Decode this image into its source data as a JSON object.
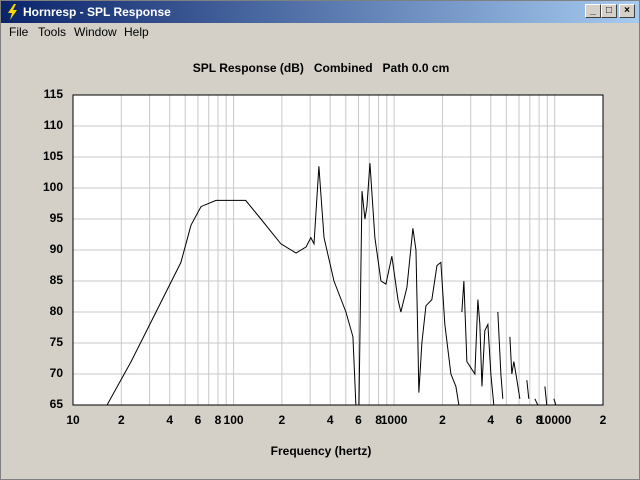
{
  "window": {
    "title": "Hornresp - SPL Response"
  },
  "menu": [
    "File",
    "Tools",
    "Window",
    "Help"
  ],
  "chart_data": {
    "type": "line",
    "title": "SPL Response (dB)   Combined   Path 0.0 cm",
    "x_label": "Frequency (hertz)",
    "log_x": true,
    "grid": true,
    "xlim": [
      10,
      20000
    ],
    "ylim": [
      65,
      115
    ],
    "yticks": [
      65,
      70,
      75,
      80,
      85,
      90,
      95,
      100,
      105,
      110,
      115
    ],
    "xticks": [
      10,
      {
        "value": 20,
        "label": "2"
      },
      {
        "value": 40,
        "label": "4"
      },
      {
        "value": 60,
        "label": "6"
      },
      {
        "value": 80,
        "label": "8"
      },
      100,
      {
        "value": 200,
        "label": "2"
      },
      {
        "value": 400,
        "label": "4"
      },
      {
        "value": 600,
        "label": "6"
      },
      {
        "value": 800,
        "label": "8"
      },
      1000,
      {
        "value": 2000,
        "label": "2"
      },
      {
        "value": 4000,
        "label": "4"
      },
      {
        "value": 6000,
        "label": "6"
      },
      {
        "value": 8000,
        "label": "8"
      },
      10000,
      {
        "value": 20000,
        "label": "2"
      }
    ],
    "x_minor_grid": [
      30,
      50,
      70,
      90,
      300,
      500,
      700,
      900,
      3000,
      5000,
      7000,
      9000
    ],
    "series": [
      {
        "color": "#000000",
        "x": [
          16.3,
          23,
          32.9,
          47,
          54.3,
          62.7,
          77.7,
          119,
          148,
          197,
          245,
          283,
          303,
          317,
          340,
          366,
          422,
          501,
          554,
          578,
          null,
          604,
          631,
          658,
          677,
          707,
          759,
          828,
          889,
          968,
          1057,
          1102,
          1202,
          1309,
          1368,
          1407,
          1426,
          1489,
          1578,
          1718,
          1849,
          1955,
          2070,
          2258,
          2425,
          2531,
          null,
          2642,
          2720,
          2840,
          3006,
          3184,
          3325,
          3420,
          3524,
          3673,
          3837,
          4005,
          4178,
          null,
          4426,
          4623,
          4755,
          null,
          5260,
          5410,
          5570,
          5820,
          6070,
          null,
          6710,
          6900,
          null,
          7530,
          7850,
          null,
          8690,
          8930,
          null,
          9890,
          10170
        ],
        "values": [
          65,
          72,
          80,
          88,
          94,
          97,
          98,
          98,
          95,
          91,
          89.5,
          90.5,
          92,
          91,
          103.5,
          92,
          85,
          80,
          76,
          65,
          null,
          65,
          99.5,
          95,
          97,
          104,
          92,
          85,
          84.5,
          89,
          82,
          80,
          84,
          93.5,
          90,
          75,
          67,
          75,
          81,
          82,
          87.5,
          88,
          78,
          70,
          68,
          65,
          null,
          80,
          85,
          72,
          71,
          70,
          82,
          78,
          68,
          77,
          78,
          70,
          65,
          null,
          80,
          70,
          66,
          null,
          76,
          70,
          72,
          69,
          66,
          null,
          69,
          66,
          null,
          66,
          65,
          null,
          68,
          65,
          null,
          66,
          65
        ]
      }
    ]
  }
}
